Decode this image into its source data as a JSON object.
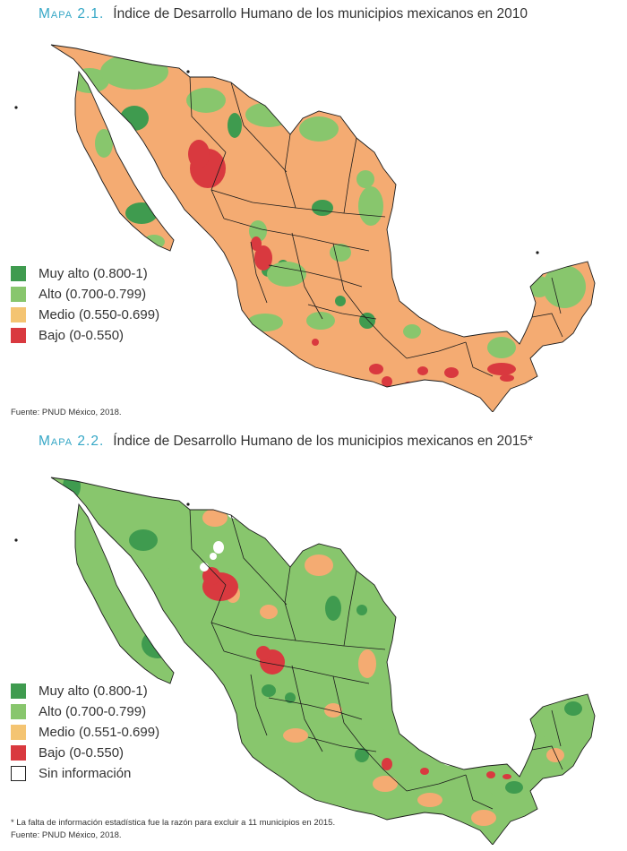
{
  "colors": {
    "muy_alto": "#3f9b4f",
    "alto": "#88c66d",
    "medio": "#f4ab72",
    "bajo": "#d9393f",
    "sin_info": "#ffffff",
    "title_accent": "#35a7c6",
    "border": "#1c1c1c"
  },
  "maps": [
    {
      "prefix": "Mapa 2.1.",
      "title": "Índice de Desarrollo Humano de los municipios mexicanos en 2010",
      "legend": [
        {
          "key": "muy_alto",
          "label": "Muy alto (0.800-1)"
        },
        {
          "key": "alto",
          "label": "Alto (0.700-0.799)"
        },
        {
          "key": "medio",
          "label": "Medio (0.550-0.699)"
        },
        {
          "key": "bajo",
          "label": "Bajo (0-0.550)"
        }
      ],
      "source": "Fuente: PNUD México, 2018."
    },
    {
      "prefix": "Mapa 2.2.",
      "title": "Índice de Desarrollo Humano de los municipios mexicanos en 2015*",
      "legend": [
        {
          "key": "muy_alto",
          "label": "Muy alto (0.800-1)"
        },
        {
          "key": "alto",
          "label": "Alto (0.700-0.799)"
        },
        {
          "key": "medio",
          "label": "Medio (0.551-0.699)"
        },
        {
          "key": "bajo",
          "label": "Bajo (0-0.550)"
        },
        {
          "key": "sin_info",
          "label": "Sin información"
        }
      ],
      "footnote": "* La falta de información estadística fue la razón para excluir a 11 municipios en 2015.",
      "source": "Fuente: PNUD México, 2018."
    }
  ]
}
